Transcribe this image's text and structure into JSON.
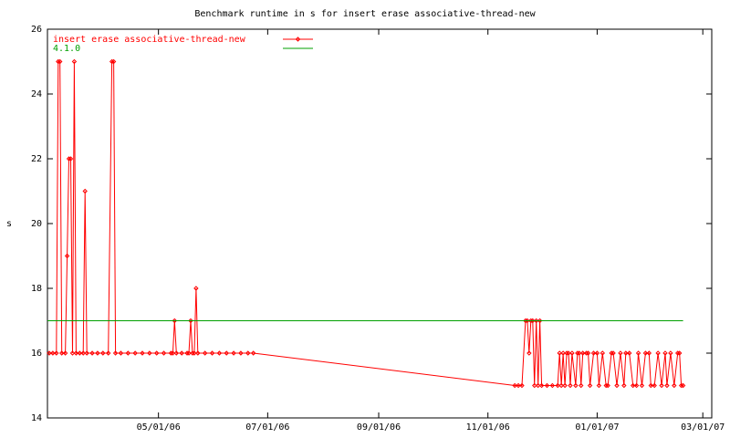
{
  "chart_data": {
    "type": "line",
    "title": "Benchmark runtime in s for insert erase associative-thread-new",
    "y_label": "s",
    "legend": "top-left",
    "xlim": [
      "02/28/06",
      "03/06/07"
    ],
    "xticks": [
      "05/01/06",
      "07/01/06",
      "09/01/06",
      "11/01/06",
      "01/01/07",
      "03/01/07"
    ],
    "ylim": [
      14,
      26
    ],
    "yticks": [
      14,
      16,
      18,
      20,
      22,
      24,
      26
    ],
    "series": [
      {
        "name": "insert erase associative-thread-new",
        "color": "#ff0000",
        "markers": true,
        "x": [
          "03/01/06",
          "03/03/06",
          "03/05/06",
          "03/06/06",
          "03/07/06",
          "03/08/06",
          "03/10/06",
          "03/11/06",
          "03/12/06",
          "03/13/06",
          "03/14/06",
          "03/15/06",
          "03/16/06",
          "03/18/06",
          "03/20/06",
          "03/21/06",
          "03/22/06",
          "03/25/06",
          "03/28/06",
          "03/31/06",
          "04/03/06",
          "04/05/06",
          "04/06/06",
          "04/07/06",
          "04/10/06",
          "04/14/06",
          "04/18/06",
          "04/22/06",
          "04/26/06",
          "04/30/06",
          "05/04/06",
          "05/08/06",
          "05/09/06",
          "05/10/06",
          "05/11/06",
          "05/14/06",
          "05/17/06",
          "05/18/06",
          "05/19/06",
          "05/20/06",
          "05/21/06",
          "05/22/06",
          "05/23/06",
          "05/27/06",
          "05/31/06",
          "06/04/06",
          "06/08/06",
          "06/12/06",
          "06/16/06",
          "06/20/06",
          "06/23/06",
          "11/16/06",
          "11/18/06",
          "11/20/06",
          "11/22/06",
          "11/23/06",
          "11/24/06",
          "11/25/06",
          "11/26/06",
          "11/27/06",
          "11/28/06",
          "11/29/06",
          "11/30/06",
          "12/01/06",
          "12/04/06",
          "12/07/06",
          "12/10/06",
          "12/11/06",
          "12/12/06",
          "12/13/06",
          "12/14/06",
          "12/15/06",
          "12/16/06",
          "12/17/06",
          "12/18/06",
          "12/20/06",
          "12/21/06",
          "12/22/06",
          "12/23/06",
          "12/24/06",
          "12/26/06",
          "12/27/06",
          "12/28/06",
          "12/30/06",
          "01/01/07",
          "01/02/07",
          "01/04/07",
          "01/06/07",
          "01/07/07",
          "01/09/07",
          "01/10/07",
          "01/12/07",
          "01/14/07",
          "01/16/07",
          "01/17/07",
          "01/19/07",
          "01/21/07",
          "01/23/07",
          "01/24/07",
          "01/26/07",
          "01/28/07",
          "01/30/07",
          "01/31/07",
          "02/02/07",
          "02/04/07",
          "02/06/07",
          "02/08/07",
          "02/09/07",
          "02/11/07",
          "02/13/07",
          "02/15/07",
          "02/16/07",
          "02/17/07",
          "02/18/07"
        ],
        "values": [
          16,
          16,
          16,
          25,
          25,
          16,
          16,
          19,
          22,
          22,
          16,
          25,
          16,
          16,
          16,
          21,
          16,
          16,
          16,
          16,
          16,
          25,
          25,
          16,
          16,
          16,
          16,
          16,
          16,
          16,
          16,
          16,
          16,
          17,
          16,
          16,
          16,
          16,
          17,
          16,
          16,
          18,
          16,
          16,
          16,
          16,
          16,
          16,
          16,
          16,
          16,
          15,
          15,
          15,
          17,
          17,
          16,
          17,
          17,
          15,
          17,
          15,
          17,
          15,
          15,
          15,
          15,
          16,
          15,
          16,
          15,
          16,
          16,
          15,
          16,
          15,
          16,
          16,
          15,
          16,
          16,
          16,
          15,
          16,
          16,
          15,
          16,
          15,
          15,
          16,
          16,
          15,
          16,
          15,
          16,
          16,
          15,
          15,
          16,
          15,
          16,
          16,
          15,
          15,
          16,
          15,
          16,
          15,
          16,
          15,
          16,
          16,
          15,
          15
        ]
      },
      {
        "name": "4.1.0",
        "color": "#00a000",
        "markers": false,
        "x": [
          "02/28/06",
          "02/18/07"
        ],
        "values": [
          17,
          17
        ]
      }
    ]
  }
}
